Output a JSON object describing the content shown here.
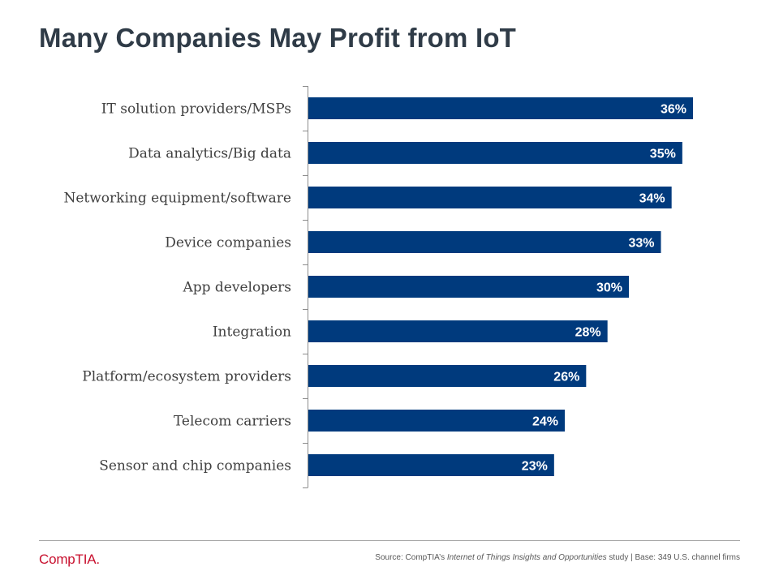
{
  "title": "Many Companies May Profit from IoT",
  "colors": {
    "bar": "#003a7d",
    "axis": "#8c8c8c",
    "title": "#2f3b47",
    "logo": "#c8102e"
  },
  "chart_data": {
    "type": "bar",
    "orientation": "horizontal",
    "title": "Many Companies May Profit from IoT",
    "xlabel": "",
    "ylabel": "",
    "categories": [
      "IT solution providers/MSPs",
      "Data analytics/Big data",
      "Networking equipment/software",
      "Device companies",
      "App developers",
      "Integration",
      "Platform/ecosystem providers",
      "Telecom carriers",
      "Sensor and chip companies"
    ],
    "values": [
      36,
      35,
      34,
      33,
      30,
      28,
      26,
      24,
      23
    ],
    "data_labels": [
      "36%",
      "35%",
      "34%",
      "33%",
      "30%",
      "28%",
      "26%",
      "24%",
      "23%"
    ],
    "unit": "%",
    "xlim": [
      0,
      36
    ],
    "grid": false,
    "legend": "none"
  },
  "footer": {
    "logo": "CompTIA.",
    "source_prefix": "Source: CompTIA’s ",
    "source_study": "Internet of Things Insights and Opportunities",
    "source_suffix": " study | Base: 349 U.S. channel firms"
  }
}
